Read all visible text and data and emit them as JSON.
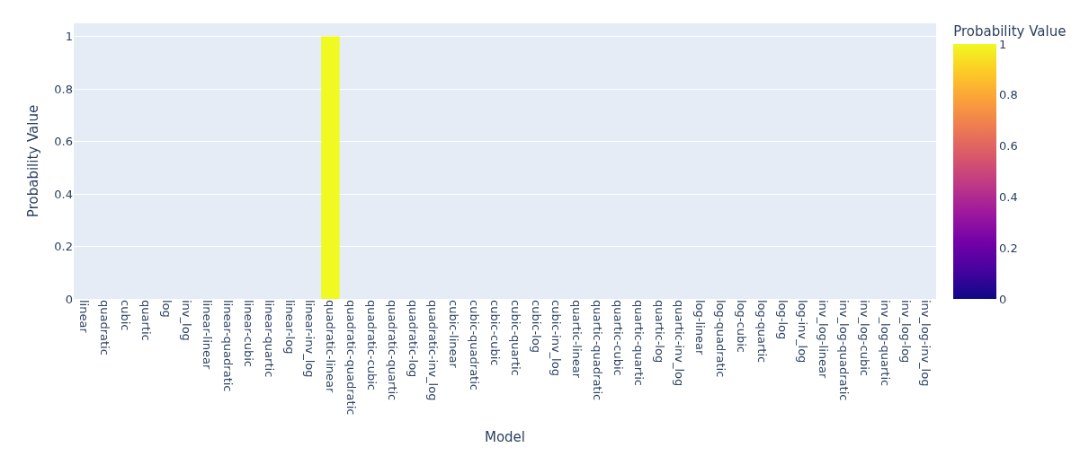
{
  "chart_data": {
    "type": "bar",
    "xlabel": "Model",
    "ylabel": "Probability Value",
    "clabel": "Probability Value",
    "categories": [
      "linear",
      "quadratic",
      "cubic",
      "quartic",
      "log",
      "inv_log",
      "linear-linear",
      "linear-quadratic",
      "linear-cubic",
      "linear-quartic",
      "linear-log",
      "linear-inv_log",
      "quadratic-linear",
      "quadratic-quadratic",
      "quadratic-cubic",
      "quadratic-quartic",
      "quadratic-log",
      "quadratic-inv_log",
      "cubic-linear",
      "cubic-quadratic",
      "cubic-cubic",
      "cubic-quartic",
      "cubic-log",
      "cubic-inv_log",
      "quartic-linear",
      "quartic-quadratic",
      "quartic-cubic",
      "quartic-quartic",
      "quartic-log",
      "quartic-inv_log",
      "log-linear",
      "log-quadratic",
      "log-cubic",
      "log-quartic",
      "log-log",
      "log-inv_log",
      "inv_log-linear",
      "inv_log-quadratic",
      "inv_log-cubic",
      "inv_log-quartic",
      "inv_log-log",
      "inv_log-inv_log"
    ],
    "values": [
      0,
      0,
      0,
      0,
      0,
      0,
      0,
      0,
      0,
      0,
      0,
      0,
      1,
      0,
      0,
      0,
      0,
      0,
      0,
      0,
      0,
      0,
      0,
      0,
      0,
      0,
      0,
      0,
      0,
      0,
      0,
      0,
      0,
      0,
      0,
      0,
      0,
      0,
      0,
      0,
      0,
      0
    ],
    "ylim": [
      0,
      1.05
    ],
    "yticks": [
      0,
      0.2,
      0.4,
      0.6,
      0.8,
      1
    ],
    "clim": [
      0,
      1
    ],
    "cticks": [
      0,
      0.2,
      0.4,
      0.6,
      0.8,
      1
    ],
    "grid": "y",
    "legend": false
  }
}
